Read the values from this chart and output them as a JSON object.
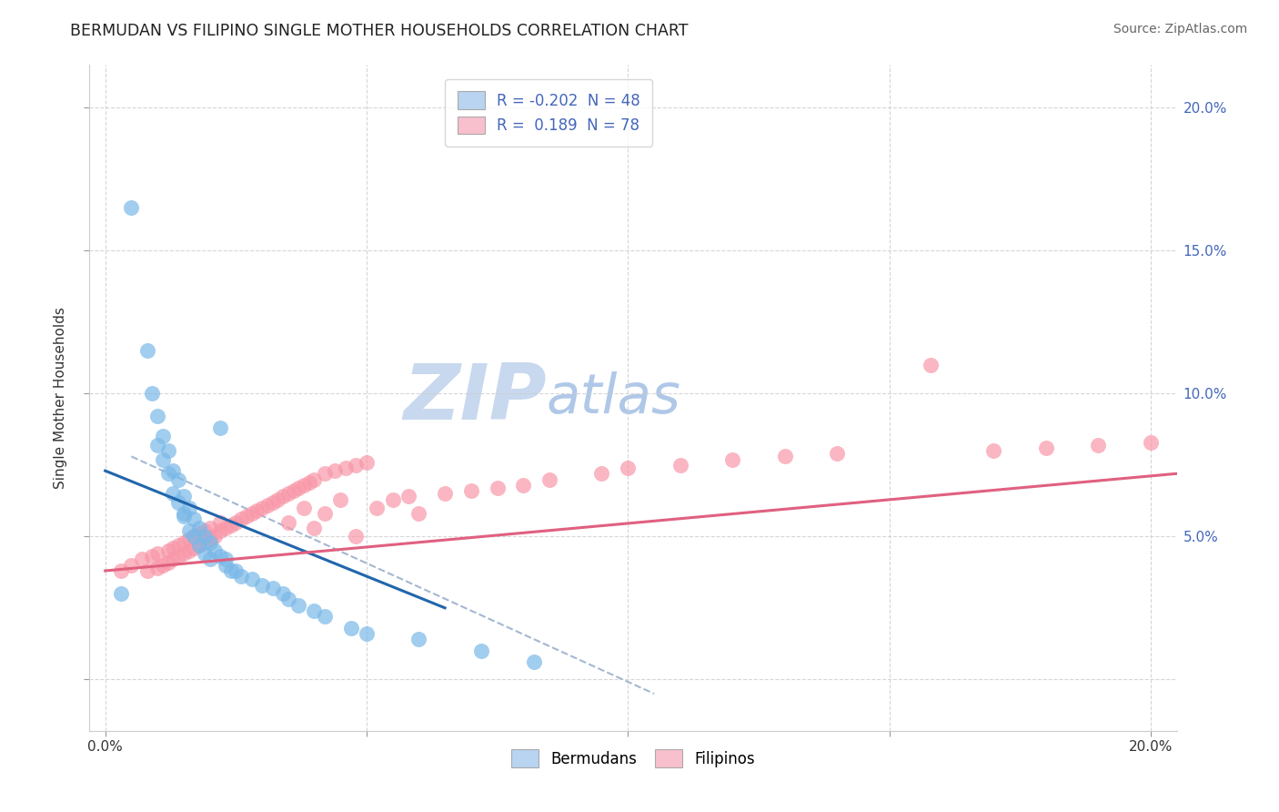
{
  "title": "BERMUDAN VS FILIPINO SINGLE MOTHER HOUSEHOLDS CORRELATION CHART",
  "source": "Source: ZipAtlas.com",
  "ylabel": "Single Mother Households",
  "bermudan_R": -0.202,
  "bermudan_N": 48,
  "filipino_R": 0.189,
  "filipino_N": 78,
  "blue_scatter_color": "#7ab8e8",
  "pink_scatter_color": "#f898a8",
  "blue_line_color": "#2166ac",
  "pink_line_color": "#e06080",
  "gray_dash_color": "#9ab0cc",
  "legend_blue_fill": "#b8d4f0",
  "legend_pink_fill": "#f8c0cc",
  "watermark_zip_color": "#c8d8ee",
  "watermark_atlas_color": "#b0c8e8",
  "bg_color": "#ffffff",
  "grid_color": "#cccccc",
  "title_color": "#222222",
  "source_color": "#666666",
  "right_axis_color": "#4466bb",
  "xlim": [
    -0.003,
    0.205
  ],
  "ylim": [
    -0.018,
    0.215
  ],
  "blue_line_x": [
    0.0,
    0.065
  ],
  "blue_line_y": [
    0.073,
    0.025
  ],
  "pink_line_x": [
    0.0,
    0.205
  ],
  "pink_line_y": [
    0.038,
    0.072
  ],
  "gray_line_x": [
    0.005,
    0.105
  ],
  "gray_line_y": [
    0.078,
    -0.005
  ],
  "bermudan_x": [
    0.005,
    0.008,
    0.009,
    0.01,
    0.01,
    0.011,
    0.011,
    0.012,
    0.012,
    0.013,
    0.013,
    0.014,
    0.014,
    0.015,
    0.015,
    0.015,
    0.016,
    0.016,
    0.017,
    0.017,
    0.018,
    0.018,
    0.019,
    0.019,
    0.02,
    0.02,
    0.021,
    0.022,
    0.023,
    0.023,
    0.024,
    0.025,
    0.026,
    0.028,
    0.03,
    0.032,
    0.034,
    0.035,
    0.037,
    0.04,
    0.042,
    0.047,
    0.05,
    0.06,
    0.072,
    0.082,
    0.022,
    0.003
  ],
  "bermudan_y": [
    0.165,
    0.115,
    0.1,
    0.092,
    0.082,
    0.085,
    0.077,
    0.08,
    0.072,
    0.073,
    0.065,
    0.07,
    0.062,
    0.064,
    0.057,
    0.058,
    0.06,
    0.052,
    0.056,
    0.05,
    0.053,
    0.047,
    0.05,
    0.044,
    0.048,
    0.042,
    0.045,
    0.043,
    0.042,
    0.04,
    0.038,
    0.038,
    0.036,
    0.035,
    0.033,
    0.032,
    0.03,
    0.028,
    0.026,
    0.024,
    0.022,
    0.018,
    0.016,
    0.014,
    0.01,
    0.006,
    0.088,
    0.03
  ],
  "filipino_x": [
    0.005,
    0.007,
    0.008,
    0.009,
    0.01,
    0.01,
    0.011,
    0.012,
    0.012,
    0.013,
    0.013,
    0.014,
    0.014,
    0.015,
    0.015,
    0.016,
    0.016,
    0.017,
    0.017,
    0.018,
    0.018,
    0.019,
    0.019,
    0.02,
    0.02,
    0.021,
    0.022,
    0.022,
    0.023,
    0.024,
    0.025,
    0.026,
    0.027,
    0.028,
    0.029,
    0.03,
    0.031,
    0.032,
    0.033,
    0.034,
    0.035,
    0.036,
    0.037,
    0.038,
    0.039,
    0.04,
    0.042,
    0.044,
    0.046,
    0.048,
    0.05,
    0.052,
    0.055,
    0.058,
    0.06,
    0.065,
    0.07,
    0.075,
    0.08,
    0.085,
    0.095,
    0.1,
    0.11,
    0.12,
    0.13,
    0.14,
    0.158,
    0.17,
    0.18,
    0.19,
    0.2,
    0.035,
    0.038,
    0.04,
    0.042,
    0.045,
    0.048,
    0.003
  ],
  "filipino_y": [
    0.04,
    0.042,
    0.038,
    0.043,
    0.039,
    0.044,
    0.04,
    0.045,
    0.041,
    0.046,
    0.042,
    0.047,
    0.043,
    0.048,
    0.044,
    0.049,
    0.045,
    0.05,
    0.046,
    0.051,
    0.047,
    0.052,
    0.048,
    0.053,
    0.049,
    0.05,
    0.052,
    0.055,
    0.053,
    0.054,
    0.055,
    0.056,
    0.057,
    0.058,
    0.059,
    0.06,
    0.061,
    0.062,
    0.063,
    0.064,
    0.065,
    0.066,
    0.067,
    0.068,
    0.069,
    0.07,
    0.072,
    0.073,
    0.074,
    0.075,
    0.076,
    0.06,
    0.063,
    0.064,
    0.058,
    0.065,
    0.066,
    0.067,
    0.068,
    0.07,
    0.072,
    0.074,
    0.075,
    0.077,
    0.078,
    0.079,
    0.11,
    0.08,
    0.081,
    0.082,
    0.083,
    0.055,
    0.06,
    0.053,
    0.058,
    0.063,
    0.05,
    0.038
  ]
}
